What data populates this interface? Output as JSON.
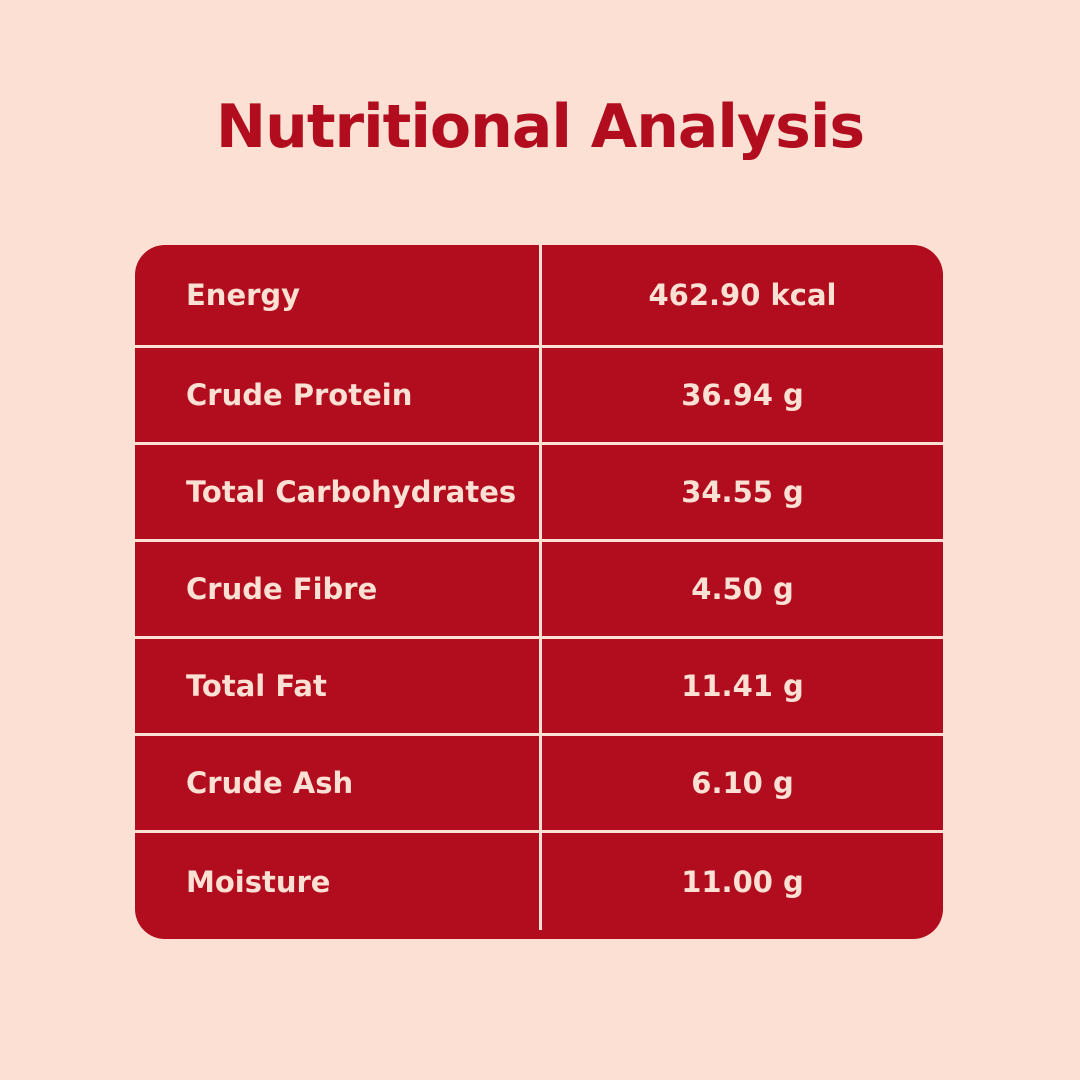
{
  "header": {
    "title": "Nutritional Analysis"
  },
  "table": {
    "rows": [
      [
        "Energy",
        "462.90 kcal"
      ],
      [
        "Crude Protein",
        "36.94 g"
      ],
      [
        "Total Carbohydrates",
        "34.55 g"
      ],
      [
        "Crude Fibre",
        "4.50 g"
      ],
      [
        "Total Fat",
        "11.41 g"
      ],
      [
        "Crude Ash",
        "6.10 g"
      ],
      [
        "Moisture",
        "11.00 g"
      ]
    ]
  }
}
